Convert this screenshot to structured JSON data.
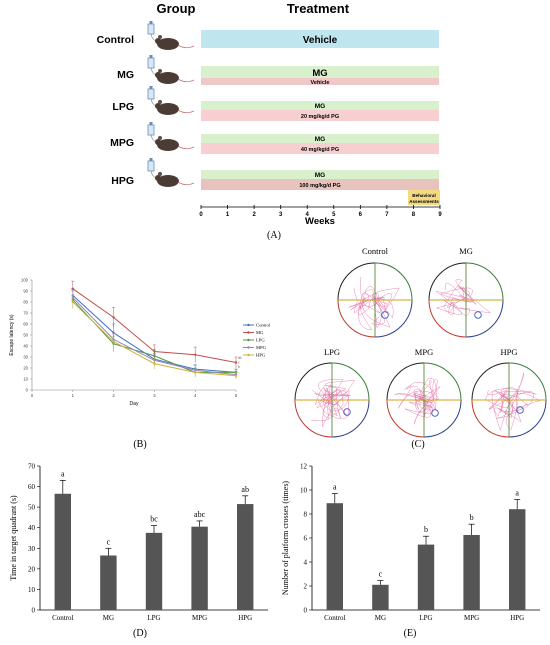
{
  "panelA": {
    "label": "(A)",
    "group_header": "Group",
    "treatment_header": "Treatment",
    "axis_title": "Weeks",
    "week_ticks": [
      "0",
      "1",
      "2",
      "3",
      "4",
      "5",
      "6",
      "7",
      "8",
      "9"
    ],
    "behavior_box": [
      "Behavioral",
      "Assessments"
    ],
    "colors": {
      "vehicle_bar": "#bfe6ef",
      "mg_bar": "#d9f0cc",
      "pg_bar": "#f7cfd0",
      "behavior_box": "#f3da82"
    },
    "rows": [
      {
        "group": "Control",
        "treatment": "Vehicle",
        "sub": ""
      },
      {
        "group": "MG",
        "treatment": "MG",
        "sub": "Vehicle"
      },
      {
        "group": "LPG",
        "treatment": "MG",
        "sub": "20 mg/kg/d PG"
      },
      {
        "group": "MPG",
        "treatment": "MG",
        "sub": "40 mg/kg/d PG"
      },
      {
        "group": "HPG",
        "treatment": "MG",
        "sub": "100 mg/kg/d PG"
      }
    ]
  },
  "panelB": {
    "label": "(B)"
  },
  "panelC": {
    "label": "(C)",
    "circles": [
      "Control",
      "MG",
      "LPG",
      "MPG",
      "HPG"
    ]
  },
  "panelD": {
    "label": "(D)"
  },
  "panelE": {
    "label": "(E)"
  },
  "chart_data": [
    {
      "type": "line",
      "ylabel": "Escape latency (s)",
      "xlabel": "Day",
      "x": [
        1,
        2,
        3,
        4,
        5
      ],
      "xlim": [
        0,
        5
      ],
      "ylim": [
        0,
        100
      ],
      "yticks": [
        0,
        10,
        20,
        30,
        40,
        50,
        60,
        70,
        80,
        90,
        100
      ],
      "xticks": [
        0,
        1,
        2,
        3,
        4,
        5
      ],
      "legend": "right",
      "series": [
        {
          "name": "Control",
          "color": "#4472c4",
          "values": [
            86,
            52,
            28,
            19,
            16
          ],
          "err": [
            6,
            8,
            5,
            4,
            3
          ]
        },
        {
          "name": "MG",
          "color": "#c0504d",
          "values": [
            92,
            66,
            35,
            32,
            25
          ],
          "err": [
            7,
            9,
            6,
            7,
            5
          ]
        },
        {
          "name": "LPG",
          "color": "#4f9a3f",
          "values": [
            82,
            42,
            31,
            16,
            16
          ],
          "err": [
            8,
            7,
            6,
            4,
            3
          ]
        },
        {
          "name": "MPG",
          "color": "#9a7fc2",
          "values": [
            84,
            46,
            27,
            18,
            14
          ],
          "err": [
            7,
            6,
            5,
            4,
            3
          ]
        },
        {
          "name": "HPG",
          "color": "#c9b43b",
          "values": [
            80,
            44,
            24,
            16,
            13
          ],
          "err": [
            6,
            7,
            5,
            3,
            3
          ]
        }
      ],
      "annotations": [
        "ab",
        "c",
        "b"
      ]
    },
    {
      "type": "bar",
      "ylabel": "Time in target quadrant (s)",
      "categories": [
        "Control",
        "MG",
        "LPG",
        "MPG",
        "HPG"
      ],
      "values": [
        56.5,
        26.5,
        37.5,
        40.5,
        51.5
      ],
      "errors": [
        6.5,
        3.5,
        3.5,
        2.8,
        4
      ],
      "letters": [
        "a",
        "c",
        "bc",
        "abc",
        "ab"
      ],
      "ylim": [
        0,
        70
      ],
      "yticks": [
        0,
        10,
        20,
        30,
        40,
        50,
        60,
        70
      ]
    },
    {
      "type": "bar",
      "ylabel": "Number of platform crosses (times)",
      "categories": [
        "Control",
        "MG",
        "LPG",
        "MPG",
        "HPG"
      ],
      "values": [
        8.9,
        2.1,
        5.45,
        6.25,
        8.4
      ],
      "errors": [
        0.8,
        0.35,
        0.7,
        0.9,
        0.8
      ],
      "letters": [
        "a",
        "c",
        "b",
        "b",
        "a"
      ],
      "ylim": [
        0,
        12
      ],
      "yticks": [
        0,
        2,
        4,
        6,
        8,
        10,
        12
      ]
    }
  ]
}
